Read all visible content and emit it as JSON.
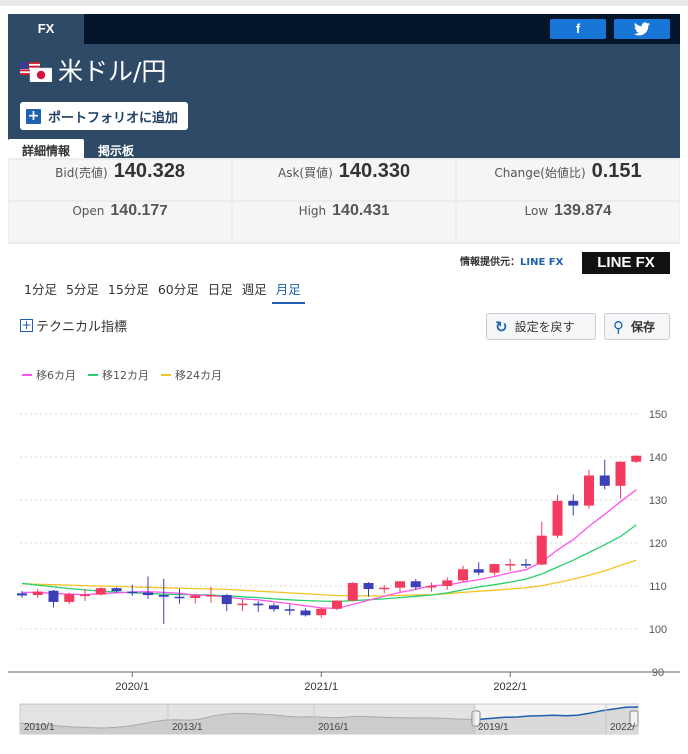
{
  "header": {
    "tab": "FX",
    "share_facebook": "f",
    "share_twitter": "🐦",
    "pair_title": "米ドル/円",
    "flag_icons": [
      "us-flag-icon",
      "jp-flag-icon"
    ],
    "portfolio_button": "ポートフォリオに追加",
    "tabs": [
      "詳細情報",
      "掲示板"
    ]
  },
  "quotes": {
    "bid_label": "Bid(売値)",
    "bid_main": "140.32",
    "bid_tail": "8",
    "ask_label": "Ask(買値)",
    "ask_main": "140.33",
    "ask_tail": "0",
    "change_label": "Change(始値比)",
    "change_value": "0.151",
    "open_label": "Open",
    "open_main": "140.17",
    "open_tail": "7",
    "high_label": "High",
    "high_main": "140.43",
    "high_tail": "1",
    "low_label": "Low",
    "low_main": "139.87",
    "low_tail": "4"
  },
  "provider": {
    "label": "情報提供元：",
    "link": "LINE FX",
    "logo": "LINE FX"
  },
  "periods": [
    "1分足",
    "5分足",
    "15分足",
    "60分足",
    "日足",
    "週足",
    "月足"
  ],
  "active_period": "月足",
  "controls": {
    "technical": "テクニカル指標",
    "reset": "設定を戻す",
    "save": "保存"
  },
  "colors": {
    "header": "#2f4a66",
    "topbar": "#02152b",
    "up": "#f23b5e",
    "down": "#3b3fb8",
    "ma6": "#ff55ee",
    "ma12": "#27d06c",
    "ma24": "#f2c526",
    "navigator": "#1d61b0"
  },
  "chart_data": {
    "type": "candlestick",
    "legend": [
      "移6カ月",
      "移12カ月",
      "移24カ月"
    ],
    "y_ticks": [
      150,
      140,
      130,
      120,
      110,
      100,
      90
    ],
    "ylim": [
      90,
      150
    ],
    "x_ticks": [
      "2020/1",
      "2021/1",
      "2022/1"
    ],
    "navigator_ticks": [
      "2010/1",
      "2013/1",
      "2016/1",
      "2019/1",
      "2022/"
    ],
    "candles": [
      {
        "x": "2019/06",
        "o": 108.3,
        "h": 108.8,
        "l": 107.3,
        "c": 107.8
      },
      {
        "x": "2019/07",
        "o": 107.9,
        "h": 109.3,
        "l": 107.2,
        "c": 108.7
      },
      {
        "x": "2019/08",
        "o": 108.9,
        "h": 109.1,
        "l": 105.0,
        "c": 106.3
      },
      {
        "x": "2019/09",
        "o": 106.3,
        "h": 108.5,
        "l": 105.8,
        "c": 108.1
      },
      {
        "x": "2019/10",
        "o": 108.0,
        "h": 109.3,
        "l": 106.5,
        "c": 108.0
      },
      {
        "x": "2019/11",
        "o": 108.0,
        "h": 109.7,
        "l": 107.8,
        "c": 109.5
      },
      {
        "x": "2019/12",
        "o": 109.5,
        "h": 109.7,
        "l": 108.4,
        "c": 108.8
      },
      {
        "x": "2020/01",
        "o": 108.7,
        "h": 110.3,
        "l": 107.7,
        "c": 108.6
      },
      {
        "x": "2020/02",
        "o": 108.5,
        "h": 112.2,
        "l": 107.0,
        "c": 107.9
      },
      {
        "x": "2020/03",
        "o": 107.9,
        "h": 111.7,
        "l": 101.2,
        "c": 107.5
      },
      {
        "x": "2020/04",
        "o": 107.5,
        "h": 109.4,
        "l": 105.9,
        "c": 107.2
      },
      {
        "x": "2020/05",
        "o": 107.2,
        "h": 108.1,
        "l": 105.9,
        "c": 107.8
      },
      {
        "x": "2020/06",
        "o": 107.8,
        "h": 109.8,
        "l": 106.1,
        "c": 107.9
      },
      {
        "x": "2020/07",
        "o": 107.9,
        "h": 108.2,
        "l": 104.2,
        "c": 105.8
      },
      {
        "x": "2020/08",
        "o": 105.8,
        "h": 107.0,
        "l": 104.2,
        "c": 105.9
      },
      {
        "x": "2020/09",
        "o": 105.9,
        "h": 106.5,
        "l": 104.0,
        "c": 105.5
      },
      {
        "x": "2020/10",
        "o": 105.5,
        "h": 106.0,
        "l": 104.0,
        "c": 104.6
      },
      {
        "x": "2020/11",
        "o": 104.6,
        "h": 105.7,
        "l": 103.2,
        "c": 104.3
      },
      {
        "x": "2020/12",
        "o": 104.3,
        "h": 104.8,
        "l": 102.9,
        "c": 103.2
      },
      {
        "x": "2021/01",
        "o": 103.2,
        "h": 105.0,
        "l": 102.6,
        "c": 104.7
      },
      {
        "x": "2021/02",
        "o": 104.7,
        "h": 106.7,
        "l": 104.4,
        "c": 106.6
      },
      {
        "x": "2021/03",
        "o": 106.6,
        "h": 110.9,
        "l": 106.4,
        "c": 110.7
      },
      {
        "x": "2021/04",
        "o": 110.7,
        "h": 110.9,
        "l": 107.5,
        "c": 109.3
      },
      {
        "x": "2021/05",
        "o": 109.3,
        "h": 110.2,
        "l": 108.3,
        "c": 109.6
      },
      {
        "x": "2021/06",
        "o": 109.6,
        "h": 111.1,
        "l": 108.6,
        "c": 111.1
      },
      {
        "x": "2021/07",
        "o": 111.1,
        "h": 111.6,
        "l": 109.1,
        "c": 109.7
      },
      {
        "x": "2021/08",
        "o": 109.7,
        "h": 110.8,
        "l": 108.7,
        "c": 110.0
      },
      {
        "x": "2021/09",
        "o": 110.0,
        "h": 112.0,
        "l": 109.1,
        "c": 111.3
      },
      {
        "x": "2021/10",
        "o": 111.3,
        "h": 114.7,
        "l": 110.8,
        "c": 113.9
      },
      {
        "x": "2021/11",
        "o": 113.9,
        "h": 115.5,
        "l": 112.5,
        "c": 113.1
      },
      {
        "x": "2021/12",
        "o": 113.1,
        "h": 115.2,
        "l": 112.5,
        "c": 115.1
      },
      {
        "x": "2022/01",
        "o": 115.1,
        "h": 116.3,
        "l": 113.5,
        "c": 115.1
      },
      {
        "x": "2022/02",
        "o": 115.1,
        "h": 116.3,
        "l": 114.2,
        "c": 115.0
      },
      {
        "x": "2022/03",
        "o": 115.0,
        "h": 125.0,
        "l": 114.8,
        "c": 121.7
      },
      {
        "x": "2022/04",
        "o": 121.7,
        "h": 131.2,
        "l": 121.2,
        "c": 129.8
      },
      {
        "x": "2022/05",
        "o": 129.8,
        "h": 131.3,
        "l": 126.4,
        "c": 128.7
      },
      {
        "x": "2022/06",
        "o": 128.7,
        "h": 137.0,
        "l": 128.0,
        "c": 135.7
      },
      {
        "x": "2022/07",
        "o": 135.7,
        "h": 139.4,
        "l": 132.5,
        "c": 133.3
      },
      {
        "x": "2022/08",
        "o": 133.3,
        "h": 139.0,
        "l": 130.4,
        "c": 138.9
      },
      {
        "x": "2022/09",
        "o": 138.9,
        "h": 140.4,
        "l": 138.6,
        "c": 140.3
      }
    ],
    "ma6": [
      108.5,
      108.5,
      108.3,
      108.1,
      108.0,
      108.2,
      108.4,
      108.6,
      108.7,
      108.5,
      108.3,
      107.9,
      107.8,
      107.4,
      107.0,
      106.8,
      106.3,
      105.9,
      105.4,
      104.9,
      104.8,
      105.7,
      106.7,
      107.6,
      108.5,
      109.2,
      110.1,
      110.2,
      110.9,
      111.5,
      112.2,
      113.1,
      113.8,
      115.6,
      118.4,
      120.8,
      123.9,
      126.7,
      129.6,
      132.4
    ],
    "ma12": [
      110.6,
      110.2,
      109.8,
      109.4,
      109.1,
      108.8,
      108.6,
      108.4,
      108.3,
      108.1,
      108.0,
      108.0,
      107.9,
      107.7,
      107.5,
      107.3,
      107.0,
      106.8,
      106.6,
      106.5,
      106.4,
      106.6,
      106.8,
      107.0,
      107.3,
      107.6,
      107.9,
      108.4,
      109.1,
      109.8,
      110.3,
      110.9,
      111.6,
      112.8,
      114.4,
      116.0,
      117.8,
      119.6,
      121.5,
      124.2
    ],
    "ma24": [
      110.5,
      110.4,
      110.3,
      110.2,
      110.1,
      110.0,
      109.9,
      109.8,
      109.7,
      109.6,
      109.5,
      109.4,
      109.3,
      109.2,
      109.0,
      108.8,
      108.6,
      108.4,
      108.2,
      108.0,
      107.8,
      107.7,
      107.7,
      107.7,
      107.8,
      107.9,
      108.0,
      108.2,
      108.5,
      108.8,
      109.0,
      109.3,
      109.6,
      110.1,
      110.8,
      111.6,
      112.5,
      113.5,
      114.8,
      116.0
    ],
    "navigator": [
      92,
      91,
      88,
      85,
      82,
      80,
      79,
      78,
      80,
      84,
      90,
      97,
      102,
      103,
      101,
      106,
      115,
      120,
      122,
      121,
      119,
      117,
      113,
      111,
      112,
      110,
      109,
      111,
      113,
      112,
      110,
      109,
      109,
      108,
      108,
      107,
      105,
      104,
      104,
      107,
      110,
      111,
      114,
      115,
      116,
      115,
      116,
      122,
      130,
      135,
      140,
      141
    ]
  }
}
